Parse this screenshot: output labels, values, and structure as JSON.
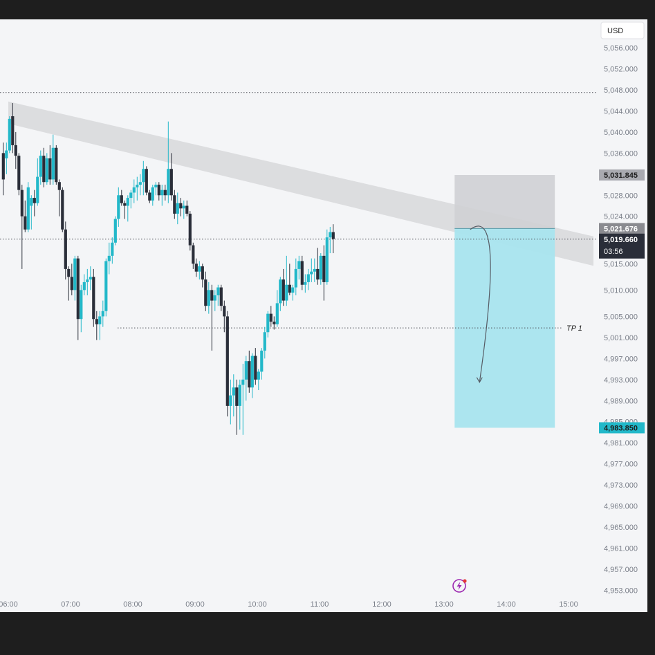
{
  "chart_data": {
    "type": "candlestick",
    "currency": "USD",
    "y_axis_ticks": [
      5056,
      5052,
      5048,
      5044,
      5040,
      5036,
      5032,
      5028,
      5024,
      5020,
      5015,
      5010,
      5005,
      5001,
      4997,
      4993,
      4989,
      4985,
      4981,
      4977,
      4973,
      4969,
      4965,
      4961,
      4957,
      4953
    ],
    "y_axis_labels": [
      "5,056.000",
      "5,052.000",
      "5,048.000",
      "5,044.000",
      "5,040.000",
      "5,036.000",
      "5,032.000",
      "5,028.000",
      "5,024.000",
      "5,020.000",
      "5,015.000",
      "5,010.000",
      "5,005.000",
      "5,001.000",
      "4,997.000",
      "4,993.000",
      "4,989.000",
      "4,985.000",
      "4,981.000",
      "4,977.000",
      "4,973.000",
      "4,969.000",
      "4,965.000",
      "4,961.000",
      "4,957.000",
      "4,953.000"
    ],
    "x_axis_labels": [
      "06:00",
      "07:00",
      "08:00",
      "09:00",
      "10:00",
      "11:00",
      "12:00",
      "13:00",
      "14:00",
      "15:00"
    ],
    "x_axis_hours": [
      6,
      7,
      8,
      9,
      10,
      11,
      12,
      13,
      14,
      15
    ],
    "resistance_level": 5047.5,
    "tp1_level": 5002.8,
    "tp1_label": "TP 1",
    "short_position": {
      "entry": 5021.676,
      "stop": 5031.845,
      "target": 4983.85,
      "start_hour": 13.17,
      "end_hour": 14.78,
      "entry_label": "5,021.676",
      "stop_label": "5,031.845",
      "target_label": "4,983.850"
    },
    "trend_channel": {
      "upper_start": [
        6.0,
        5045.8
      ],
      "upper_end": [
        15.4,
        5020.2
      ],
      "lower_start": [
        6.0,
        5041.6
      ],
      "lower_end": [
        15.4,
        5014.6
      ]
    },
    "current_price": 5019.66,
    "current_price_label": "5,019.660",
    "countdown": "03:56",
    "projection": {
      "start": [
        13.42,
        5021.5
      ],
      "end": [
        13.57,
        4992.5
      ]
    },
    "candles": [
      {
        "t": 5.92,
        "o": 5036.0,
        "h": 5038.0,
        "l": 5028.0,
        "c": 5031.0
      },
      {
        "t": 5.97,
        "o": 5035.0,
        "h": 5038.0,
        "l": 5032.0,
        "c": 5036.5
      },
      {
        "t": 6.02,
        "o": 5036.5,
        "h": 5043.0,
        "l": 5036.0,
        "c": 5042.5
      },
      {
        "t": 6.07,
        "o": 5043.0,
        "h": 5045.5,
        "l": 5036.0,
        "c": 5037.5
      },
      {
        "t": 6.12,
        "o": 5037.5,
        "h": 5040.0,
        "l": 5033.0,
        "c": 5035.5
      },
      {
        "t": 6.17,
        "o": 5035.5,
        "h": 5036.0,
        "l": 5028.0,
        "c": 5029.0
      },
      {
        "t": 6.22,
        "o": 5029.0,
        "h": 5030.0,
        "l": 5014.0,
        "c": 5024.0
      },
      {
        "t": 6.27,
        "o": 5024.0,
        "h": 5027.0,
        "l": 5021.0,
        "c": 5021.5
      },
      {
        "t": 6.32,
        "o": 5021.5,
        "h": 5030.5,
        "l": 5021.0,
        "c": 5029.5
      },
      {
        "t": 6.37,
        "o": 5026.0,
        "h": 5028.0,
        "l": 5021.5,
        "c": 5027.5
      },
      {
        "t": 6.42,
        "o": 5027.5,
        "h": 5029.0,
        "l": 5024.0,
        "c": 5026.5
      },
      {
        "t": 6.47,
        "o": 5026.5,
        "h": 5035.0,
        "l": 5026.0,
        "c": 5031.5
      },
      {
        "t": 6.52,
        "o": 5031.5,
        "h": 5036.5,
        "l": 5030.0,
        "c": 5035.5
      },
      {
        "t": 6.57,
        "o": 5035.5,
        "h": 5037.0,
        "l": 5029.5,
        "c": 5030.5
      },
      {
        "t": 6.62,
        "o": 5030.5,
        "h": 5036.0,
        "l": 5030.0,
        "c": 5035.0
      },
      {
        "t": 6.67,
        "o": 5035.0,
        "h": 5037.5,
        "l": 5030.0,
        "c": 5031.0
      },
      {
        "t": 6.72,
        "o": 5031.0,
        "h": 5039.5,
        "l": 5030.0,
        "c": 5037.0
      },
      {
        "t": 6.77,
        "o": 5037.0,
        "h": 5037.5,
        "l": 5030.0,
        "c": 5030.5
      },
      {
        "t": 6.82,
        "o": 5030.5,
        "h": 5031.0,
        "l": 5024.0,
        "c": 5029.0
      },
      {
        "t": 6.87,
        "o": 5029.0,
        "h": 5029.5,
        "l": 5021.0,
        "c": 5021.5
      },
      {
        "t": 6.92,
        "o": 5021.5,
        "h": 5023.0,
        "l": 5012.0,
        "c": 5014.0
      },
      {
        "t": 6.97,
        "o": 5014.0,
        "h": 5014.5,
        "l": 5008.0,
        "c": 5012.5
      },
      {
        "t": 7.02,
        "o": 5012.5,
        "h": 5015.0,
        "l": 5009.0,
        "c": 5010.0
      },
      {
        "t": 7.07,
        "o": 5010.0,
        "h": 5016.5,
        "l": 5008.0,
        "c": 5016.0
      },
      {
        "t": 7.12,
        "o": 5016.0,
        "h": 5016.5,
        "l": 5000.5,
        "c": 5004.5
      },
      {
        "t": 7.17,
        "o": 5004.5,
        "h": 5011.0,
        "l": 5002.0,
        "c": 5010.0
      },
      {
        "t": 7.22,
        "o": 5010.0,
        "h": 5013.0,
        "l": 5009.0,
        "c": 5011.5
      },
      {
        "t": 7.27,
        "o": 5011.5,
        "h": 5014.0,
        "l": 5009.0,
        "c": 5012.0
      },
      {
        "t": 7.32,
        "o": 5012.0,
        "h": 5014.5,
        "l": 5010.0,
        "c": 5012.5
      },
      {
        "t": 7.37,
        "o": 5012.5,
        "h": 5014.0,
        "l": 5003.0,
        "c": 5004.5
      },
      {
        "t": 7.42,
        "o": 5004.5,
        "h": 5006.0,
        "l": 5000.5,
        "c": 5003.5
      },
      {
        "t": 7.47,
        "o": 5003.5,
        "h": 5006.0,
        "l": 5000.5,
        "c": 5005.0
      },
      {
        "t": 7.52,
        "o": 5005.0,
        "h": 5008.0,
        "l": 5003.0,
        "c": 5006.0
      },
      {
        "t": 7.57,
        "o": 5006.0,
        "h": 5016.0,
        "l": 5005.0,
        "c": 5015.5
      },
      {
        "t": 7.62,
        "o": 5015.5,
        "h": 5019.0,
        "l": 5013.0,
        "c": 5016.5
      },
      {
        "t": 7.67,
        "o": 5016.5,
        "h": 5020.0,
        "l": 5015.0,
        "c": 5019.0
      },
      {
        "t": 7.72,
        "o": 5019.0,
        "h": 5024.0,
        "l": 5018.5,
        "c": 5023.5
      },
      {
        "t": 7.77,
        "o": 5023.5,
        "h": 5029.5,
        "l": 5022.0,
        "c": 5028.0
      },
      {
        "t": 7.82,
        "o": 5028.0,
        "h": 5029.0,
        "l": 5026.0,
        "c": 5026.5
      },
      {
        "t": 7.87,
        "o": 5026.5,
        "h": 5027.0,
        "l": 5023.5,
        "c": 5026.0
      },
      {
        "t": 7.92,
        "o": 5026.0,
        "h": 5028.0,
        "l": 5023.0,
        "c": 5027.5
      },
      {
        "t": 7.97,
        "o": 5027.5,
        "h": 5029.0,
        "l": 5025.5,
        "c": 5028.5
      },
      {
        "t": 8.02,
        "o": 5028.5,
        "h": 5031.0,
        "l": 5026.5,
        "c": 5029.5
      },
      {
        "t": 8.07,
        "o": 5029.5,
        "h": 5031.5,
        "l": 5027.0,
        "c": 5030.0
      },
      {
        "t": 8.12,
        "o": 5030.0,
        "h": 5032.0,
        "l": 5028.0,
        "c": 5030.5
      },
      {
        "t": 8.17,
        "o": 5030.5,
        "h": 5034.5,
        "l": 5028.0,
        "c": 5033.0
      },
      {
        "t": 8.22,
        "o": 5033.0,
        "h": 5033.5,
        "l": 5028.0,
        "c": 5028.5
      },
      {
        "t": 8.27,
        "o": 5028.5,
        "h": 5029.0,
        "l": 5026.5,
        "c": 5027.0
      },
      {
        "t": 8.32,
        "o": 5027.0,
        "h": 5030.0,
        "l": 5026.0,
        "c": 5029.5
      },
      {
        "t": 8.37,
        "o": 5029.5,
        "h": 5030.5,
        "l": 5028.0,
        "c": 5030.0
      },
      {
        "t": 8.42,
        "o": 5030.0,
        "h": 5030.5,
        "l": 5027.0,
        "c": 5028.0
      },
      {
        "t": 8.47,
        "o": 5028.0,
        "h": 5030.0,
        "l": 5026.0,
        "c": 5029.0
      },
      {
        "t": 8.52,
        "o": 5029.0,
        "h": 5030.0,
        "l": 5027.0,
        "c": 5028.0
      },
      {
        "t": 8.57,
        "o": 5028.0,
        "h": 5042.0,
        "l": 5026.5,
        "c": 5033.0
      },
      {
        "t": 8.62,
        "o": 5033.0,
        "h": 5036.0,
        "l": 5027.0,
        "c": 5028.0
      },
      {
        "t": 8.67,
        "o": 5028.0,
        "h": 5029.0,
        "l": 5023.5,
        "c": 5024.5
      },
      {
        "t": 8.72,
        "o": 5024.5,
        "h": 5028.5,
        "l": 5022.5,
        "c": 5026.5
      },
      {
        "t": 8.77,
        "o": 5026.5,
        "h": 5027.5,
        "l": 5024.0,
        "c": 5025.5
      },
      {
        "t": 8.82,
        "o": 5025.5,
        "h": 5027.0,
        "l": 5023.5,
        "c": 5026.0
      },
      {
        "t": 8.87,
        "o": 5026.0,
        "h": 5027.0,
        "l": 5024.0,
        "c": 5024.5
      },
      {
        "t": 8.92,
        "o": 5024.5,
        "h": 5025.0,
        "l": 5017.5,
        "c": 5018.5
      },
      {
        "t": 8.97,
        "o": 5018.5,
        "h": 5019.0,
        "l": 5014.0,
        "c": 5015.0
      },
      {
        "t": 9.02,
        "o": 5015.0,
        "h": 5016.0,
        "l": 5012.5,
        "c": 5013.5
      },
      {
        "t": 9.07,
        "o": 5013.5,
        "h": 5015.5,
        "l": 5012.0,
        "c": 5014.5
      },
      {
        "t": 9.12,
        "o": 5014.5,
        "h": 5015.0,
        "l": 5010.5,
        "c": 5012.0
      },
      {
        "t": 9.17,
        "o": 5012.0,
        "h": 5013.5,
        "l": 5006.0,
        "c": 5007.0
      },
      {
        "t": 9.22,
        "o": 5007.0,
        "h": 5011.5,
        "l": 5005.5,
        "c": 5010.0
      },
      {
        "t": 9.27,
        "o": 5010.0,
        "h": 5011.0,
        "l": 4998.5,
        "c": 5008.0
      },
      {
        "t": 9.32,
        "o": 5008.0,
        "h": 5010.0,
        "l": 5006.0,
        "c": 5009.0
      },
      {
        "t": 9.37,
        "o": 5009.0,
        "h": 5011.0,
        "l": 5007.0,
        "c": 5010.5
      },
      {
        "t": 9.42,
        "o": 5010.5,
        "h": 5011.0,
        "l": 5006.0,
        "c": 5007.0
      },
      {
        "t": 9.47,
        "o": 5007.0,
        "h": 5008.0,
        "l": 5002.0,
        "c": 5005.0
      },
      {
        "t": 9.52,
        "o": 5005.0,
        "h": 5006.0,
        "l": 4986.0,
        "c": 4988.0
      },
      {
        "t": 9.57,
        "o": 4988.0,
        "h": 4993.0,
        "l": 4984.5,
        "c": 4990.0
      },
      {
        "t": 9.62,
        "o": 4990.0,
        "h": 4994.0,
        "l": 4986.0,
        "c": 4991.5
      },
      {
        "t": 9.67,
        "o": 4991.5,
        "h": 4993.0,
        "l": 4982.5,
        "c": 4988.0
      },
      {
        "t": 9.72,
        "o": 4988.0,
        "h": 4993.0,
        "l": 4983.5,
        "c": 4992.0
      },
      {
        "t": 9.77,
        "o": 4992.0,
        "h": 4996.0,
        "l": 4982.5,
        "c": 4993.0
      },
      {
        "t": 9.82,
        "o": 4993.0,
        "h": 4997.5,
        "l": 4989.0,
        "c": 4996.5
      },
      {
        "t": 9.87,
        "o": 4996.5,
        "h": 4998.5,
        "l": 4990.5,
        "c": 4991.5
      },
      {
        "t": 9.92,
        "o": 4991.5,
        "h": 4998.0,
        "l": 4989.5,
        "c": 4997.5
      },
      {
        "t": 9.97,
        "o": 4997.5,
        "h": 4999.0,
        "l": 4992.0,
        "c": 4993.0
      },
      {
        "t": 10.02,
        "o": 4993.0,
        "h": 4995.0,
        "l": 4991.0,
        "c": 4994.5
      },
      {
        "t": 10.07,
        "o": 4994.5,
        "h": 4999.0,
        "l": 4993.0,
        "c": 4998.5
      },
      {
        "t": 10.12,
        "o": 4998.5,
        "h": 5003.0,
        "l": 4997.0,
        "c": 5002.0
      },
      {
        "t": 10.17,
        "o": 5002.0,
        "h": 5006.0,
        "l": 5001.0,
        "c": 5005.5
      },
      {
        "t": 10.22,
        "o": 5005.5,
        "h": 5007.0,
        "l": 5003.0,
        "c": 5004.0
      },
      {
        "t": 10.27,
        "o": 5004.0,
        "h": 5005.0,
        "l": 5002.5,
        "c": 5003.5
      },
      {
        "t": 10.32,
        "o": 5003.5,
        "h": 5010.0,
        "l": 5003.0,
        "c": 5007.5
      },
      {
        "t": 10.37,
        "o": 5007.5,
        "h": 5012.5,
        "l": 5006.0,
        "c": 5012.0
      },
      {
        "t": 10.42,
        "o": 5012.0,
        "h": 5014.0,
        "l": 5007.0,
        "c": 5008.0
      },
      {
        "t": 10.47,
        "o": 5008.0,
        "h": 5016.5,
        "l": 5007.0,
        "c": 5011.0
      },
      {
        "t": 10.52,
        "o": 5011.0,
        "h": 5015.0,
        "l": 5009.0,
        "c": 5009.5
      },
      {
        "t": 10.57,
        "o": 5009.5,
        "h": 5011.0,
        "l": 5008.0,
        "c": 5010.5
      },
      {
        "t": 10.62,
        "o": 5010.5,
        "h": 5016.0,
        "l": 5009.0,
        "c": 5014.0
      },
      {
        "t": 10.67,
        "o": 5014.0,
        "h": 5016.5,
        "l": 5012.0,
        "c": 5015.5
      },
      {
        "t": 10.72,
        "o": 5015.5,
        "h": 5016.5,
        "l": 5010.0,
        "c": 5011.0
      },
      {
        "t": 10.77,
        "o": 5011.0,
        "h": 5013.0,
        "l": 5009.5,
        "c": 5011.5
      },
      {
        "t": 10.82,
        "o": 5011.5,
        "h": 5014.0,
        "l": 5010.0,
        "c": 5013.0
      },
      {
        "t": 10.87,
        "o": 5013.0,
        "h": 5016.0,
        "l": 5011.5,
        "c": 5013.5
      },
      {
        "t": 10.92,
        "o": 5013.5,
        "h": 5016.0,
        "l": 5011.5,
        "c": 5014.0
      },
      {
        "t": 10.97,
        "o": 5014.0,
        "h": 5018.0,
        "l": 5011.0,
        "c": 5012.0
      },
      {
        "t": 11.02,
        "o": 5012.0,
        "h": 5017.0,
        "l": 5011.0,
        "c": 5016.5
      },
      {
        "t": 11.07,
        "o": 5016.5,
        "h": 5018.5,
        "l": 5008.0,
        "c": 5011.5
      },
      {
        "t": 11.12,
        "o": 5011.5,
        "h": 5021.5,
        "l": 5011.0,
        "c": 5020.0
      },
      {
        "t": 11.17,
        "o": 5020.0,
        "h": 5022.0,
        "l": 5017.0,
        "c": 5021.0
      },
      {
        "t": 11.22,
        "o": 5021.0,
        "h": 5022.5,
        "l": 5017.0,
        "c": 5019.7
      }
    ]
  },
  "watermark_icon": "lightning-bolt-icon",
  "colors": {
    "up": "#22b8c9",
    "down": "#2a2e39",
    "background": "#f4f5f7",
    "frame": "#1e1e1e",
    "channel": "#c8c9cc",
    "target_zone": "#a8e4ee",
    "stop_zone": "#cfd0d4",
    "entry_badge": "#8a8b90",
    "stop_badge": "#a9aab0",
    "target_badge": "#22b8c9",
    "price_badge": "#2a2e39",
    "watermark": "#9c27b0"
  }
}
